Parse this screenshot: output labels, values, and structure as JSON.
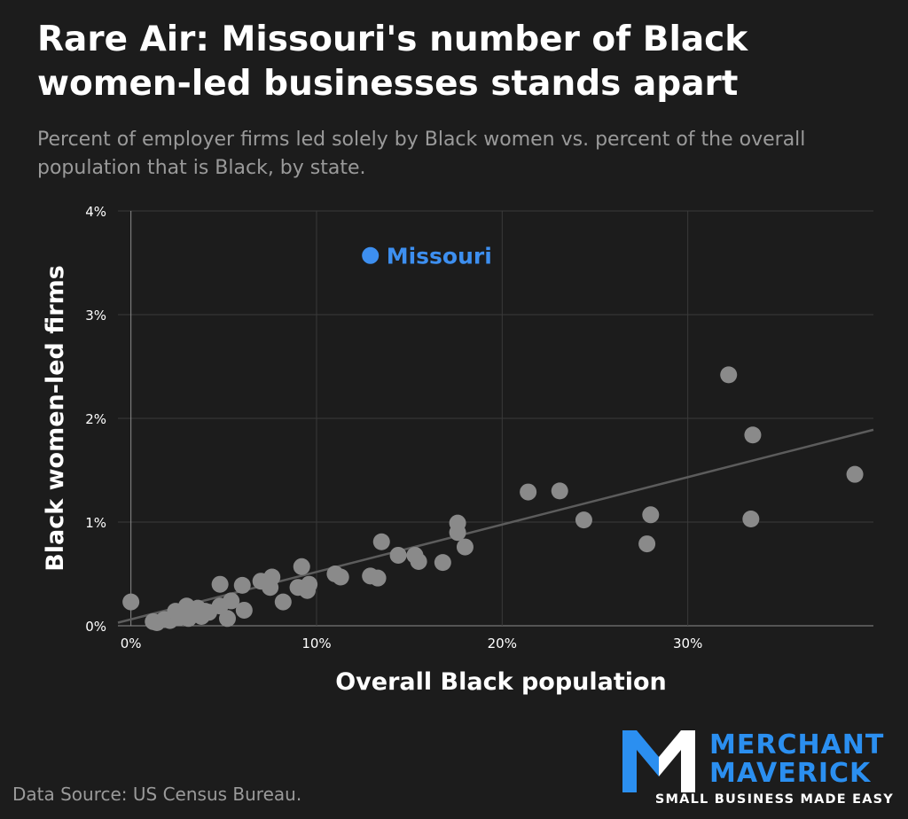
{
  "title": "Rare Air: Missouri's number of Black women-led businesses stands apart",
  "subtitle": "Percent of employer firms led solely by Black women vs. percent of the overall population that is Black, by state.",
  "source": "Data Source: US Census Bureau.",
  "logo": {
    "line1": "MERCHANT",
    "line2": "MAVERICK",
    "tagline": "SMALL BUSINESS MADE EASY"
  },
  "colors": {
    "background": "#1c1c1c",
    "points": "#8a8a8a",
    "highlight": "#3d8ff0",
    "trendline": "#5c5c5c",
    "logo_blue": "#2b8ff0"
  },
  "chart_data": {
    "type": "scatter",
    "xlabel": "Overall Black population",
    "ylabel": "Black women-led firms",
    "x_unit": "%",
    "y_unit": "%",
    "xlim": [
      -0.7,
      40
    ],
    "ylim": [
      0,
      4
    ],
    "x_ticks": [
      0,
      10,
      20,
      30
    ],
    "x_tick_labels": [
      "0%",
      "10%",
      "20%",
      "30%"
    ],
    "y_ticks": [
      0,
      1,
      2,
      3,
      4
    ],
    "y_tick_labels": [
      "0%",
      "1%",
      "2%",
      "3%",
      "4%"
    ],
    "grid": true,
    "highlight": {
      "label": "Missouri",
      "x": 12.9,
      "y": 3.57
    },
    "trendline": {
      "x": [
        -0.7,
        40
      ],
      "y": [
        0.03,
        1.89
      ]
    },
    "points": [
      {
        "x": 0.0,
        "y": 0.23
      },
      {
        "x": 1.2,
        "y": 0.04
      },
      {
        "x": 1.4,
        "y": 0.03
      },
      {
        "x": 1.8,
        "y": 0.06
      },
      {
        "x": 2.1,
        "y": 0.05
      },
      {
        "x": 2.4,
        "y": 0.14
      },
      {
        "x": 2.6,
        "y": 0.08
      },
      {
        "x": 2.8,
        "y": 0.12
      },
      {
        "x": 3.0,
        "y": 0.19
      },
      {
        "x": 3.1,
        "y": 0.07
      },
      {
        "x": 3.3,
        "y": 0.15
      },
      {
        "x": 3.5,
        "y": 0.11
      },
      {
        "x": 3.6,
        "y": 0.17
      },
      {
        "x": 3.8,
        "y": 0.09
      },
      {
        "x": 4.0,
        "y": 0.14
      },
      {
        "x": 4.2,
        "y": 0.13
      },
      {
        "x": 4.8,
        "y": 0.4
      },
      {
        "x": 4.8,
        "y": 0.19
      },
      {
        "x": 5.2,
        "y": 0.07
      },
      {
        "x": 5.4,
        "y": 0.24
      },
      {
        "x": 6.0,
        "y": 0.39
      },
      {
        "x": 6.1,
        "y": 0.15
      },
      {
        "x": 7.0,
        "y": 0.43
      },
      {
        "x": 7.5,
        "y": 0.37
      },
      {
        "x": 7.6,
        "y": 0.47
      },
      {
        "x": 8.2,
        "y": 0.23
      },
      {
        "x": 9.0,
        "y": 0.37
      },
      {
        "x": 9.2,
        "y": 0.57
      },
      {
        "x": 9.5,
        "y": 0.34
      },
      {
        "x": 9.6,
        "y": 0.4
      },
      {
        "x": 11.0,
        "y": 0.5
      },
      {
        "x": 11.3,
        "y": 0.47
      },
      {
        "x": 12.9,
        "y": 0.48
      },
      {
        "x": 13.3,
        "y": 0.46
      },
      {
        "x": 13.5,
        "y": 0.81
      },
      {
        "x": 14.4,
        "y": 0.68
      },
      {
        "x": 15.3,
        "y": 0.68
      },
      {
        "x": 15.5,
        "y": 0.62
      },
      {
        "x": 16.8,
        "y": 0.61
      },
      {
        "x": 17.6,
        "y": 0.99
      },
      {
        "x": 17.6,
        "y": 0.9
      },
      {
        "x": 18.0,
        "y": 0.76
      },
      {
        "x": 21.4,
        "y": 1.29
      },
      {
        "x": 23.1,
        "y": 1.3
      },
      {
        "x": 24.4,
        "y": 1.02
      },
      {
        "x": 27.8,
        "y": 0.79
      },
      {
        "x": 28.0,
        "y": 1.07
      },
      {
        "x": 32.2,
        "y": 2.42
      },
      {
        "x": 33.4,
        "y": 1.03
      },
      {
        "x": 33.5,
        "y": 1.84
      },
      {
        "x": 39.0,
        "y": 1.46
      }
    ]
  }
}
